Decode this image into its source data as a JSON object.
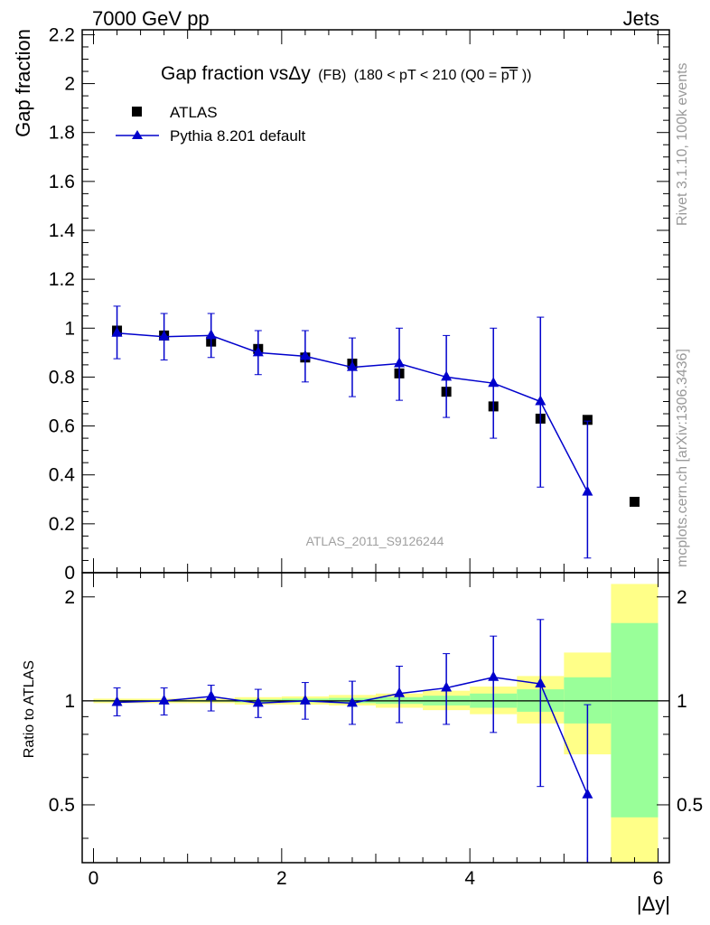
{
  "header": {
    "left": "7000 GeV pp",
    "right": "Jets"
  },
  "side_labels": {
    "rivet": "Rivet 3.1.10,  100k events",
    "source": "mcplots.cern.ch [arXiv:1306.3436]"
  },
  "chart_data": [
    {
      "type": "scatter",
      "title": "Gap fraction vsΔy",
      "subtitle": "(FB) (180 < pT < 210 (Q0 =pT))",
      "title_main": "Gap fraction vsΔy",
      "title_cut": "(FB)",
      "title_range": "(180 < pT < 210 (Q0 =",
      "title_pt": "pT",
      "title_close": "))",
      "ylabel": "Gap fraction",
      "xlabel": "",
      "watermark": "ATLAS_2011_S9126244",
      "xlim": [
        -0.12,
        6.12
      ],
      "ylim": [
        0,
        2.22
      ],
      "yticks": [
        "0",
        "0.2",
        "0.4",
        "0.6",
        "0.8",
        "1",
        "1.2",
        "1.4",
        "1.6",
        "1.8",
        "2",
        "2.2"
      ],
      "legend": [
        {
          "name": "ATLAS",
          "marker": "square",
          "color": "#000000"
        },
        {
          "name": "Pythia 8.201 default",
          "marker": "triangle",
          "color": "#0000cc"
        }
      ],
      "series": [
        {
          "name": "ATLAS",
          "x": [
            0.25,
            0.75,
            1.25,
            1.75,
            2.25,
            2.75,
            3.25,
            3.75,
            4.25,
            4.75,
            5.25,
            5.75
          ],
          "y": [
            0.99,
            0.97,
            0.945,
            0.915,
            0.88,
            0.855,
            0.815,
            0.74,
            0.68,
            0.63,
            0.625,
            0.29
          ]
        },
        {
          "name": "Pythia 8.201 default",
          "x": [
            0.25,
            0.75,
            1.25,
            1.75,
            2.25,
            2.75,
            3.25,
            3.75,
            4.25,
            4.75,
            5.25
          ],
          "y": [
            0.98,
            0.965,
            0.97,
            0.9,
            0.885,
            0.84,
            0.855,
            0.8,
            0.775,
            0.7,
            0.33
          ],
          "err_low": [
            0.875,
            0.87,
            0.88,
            0.81,
            0.78,
            0.72,
            0.705,
            0.635,
            0.55,
            0.35,
            0.06
          ],
          "err_high": [
            1.09,
            1.06,
            1.06,
            0.99,
            0.99,
            0.96,
            1.0,
            0.97,
            1.0,
            1.045,
            0.62
          ]
        }
      ]
    },
    {
      "type": "line",
      "ylabel": "Ratio to ATLAS",
      "xlabel": "|Δy|",
      "xlim": [
        -0.12,
        6.12
      ],
      "ylim": [
        0.34,
        2.35
      ],
      "log_y": true,
      "yticks": [
        "0.5",
        "1",
        "2"
      ],
      "xticks": [
        "0",
        "2",
        "4",
        "6"
      ],
      "bands": {
        "x_edges": [
          0,
          0.5,
          1.0,
          1.5,
          2.0,
          2.5,
          3.0,
          3.5,
          4.0,
          4.5,
          5.0,
          5.5,
          6.0
        ],
        "yellow_low": [
          0.985,
          0.985,
          0.985,
          0.975,
          0.975,
          0.97,
          0.955,
          0.94,
          0.915,
          0.86,
          0.7,
          0.34
        ],
        "yellow_high": [
          1.015,
          1.015,
          1.015,
          1.025,
          1.03,
          1.04,
          1.05,
          1.07,
          1.1,
          1.18,
          1.38,
          2.18
        ],
        "green_low": [
          0.995,
          0.995,
          0.995,
          0.99,
          0.99,
          0.985,
          0.98,
          0.97,
          0.955,
          0.93,
          0.86,
          0.46
        ],
        "green_high": [
          1.005,
          1.005,
          1.005,
          1.01,
          1.015,
          1.02,
          1.025,
          1.035,
          1.05,
          1.08,
          1.17,
          1.68
        ]
      },
      "series": [
        {
          "name": "Pythia 8.201 default",
          "x": [
            0.25,
            0.75,
            1.25,
            1.75,
            2.25,
            2.75,
            3.25,
            3.75,
            4.25,
            4.75,
            5.25
          ],
          "y": [
            0.99,
            1.0,
            1.03,
            0.985,
            1.0,
            0.985,
            1.05,
            1.09,
            1.17,
            1.12,
            0.535
          ],
          "err_low": [
            0.905,
            0.91,
            0.935,
            0.895,
            0.885,
            0.855,
            0.865,
            0.855,
            0.81,
            0.565,
            0.2
          ],
          "err_high": [
            1.09,
            1.09,
            1.11,
            1.08,
            1.13,
            1.14,
            1.26,
            1.37,
            1.54,
            1.72,
            0.975
          ]
        }
      ]
    }
  ]
}
